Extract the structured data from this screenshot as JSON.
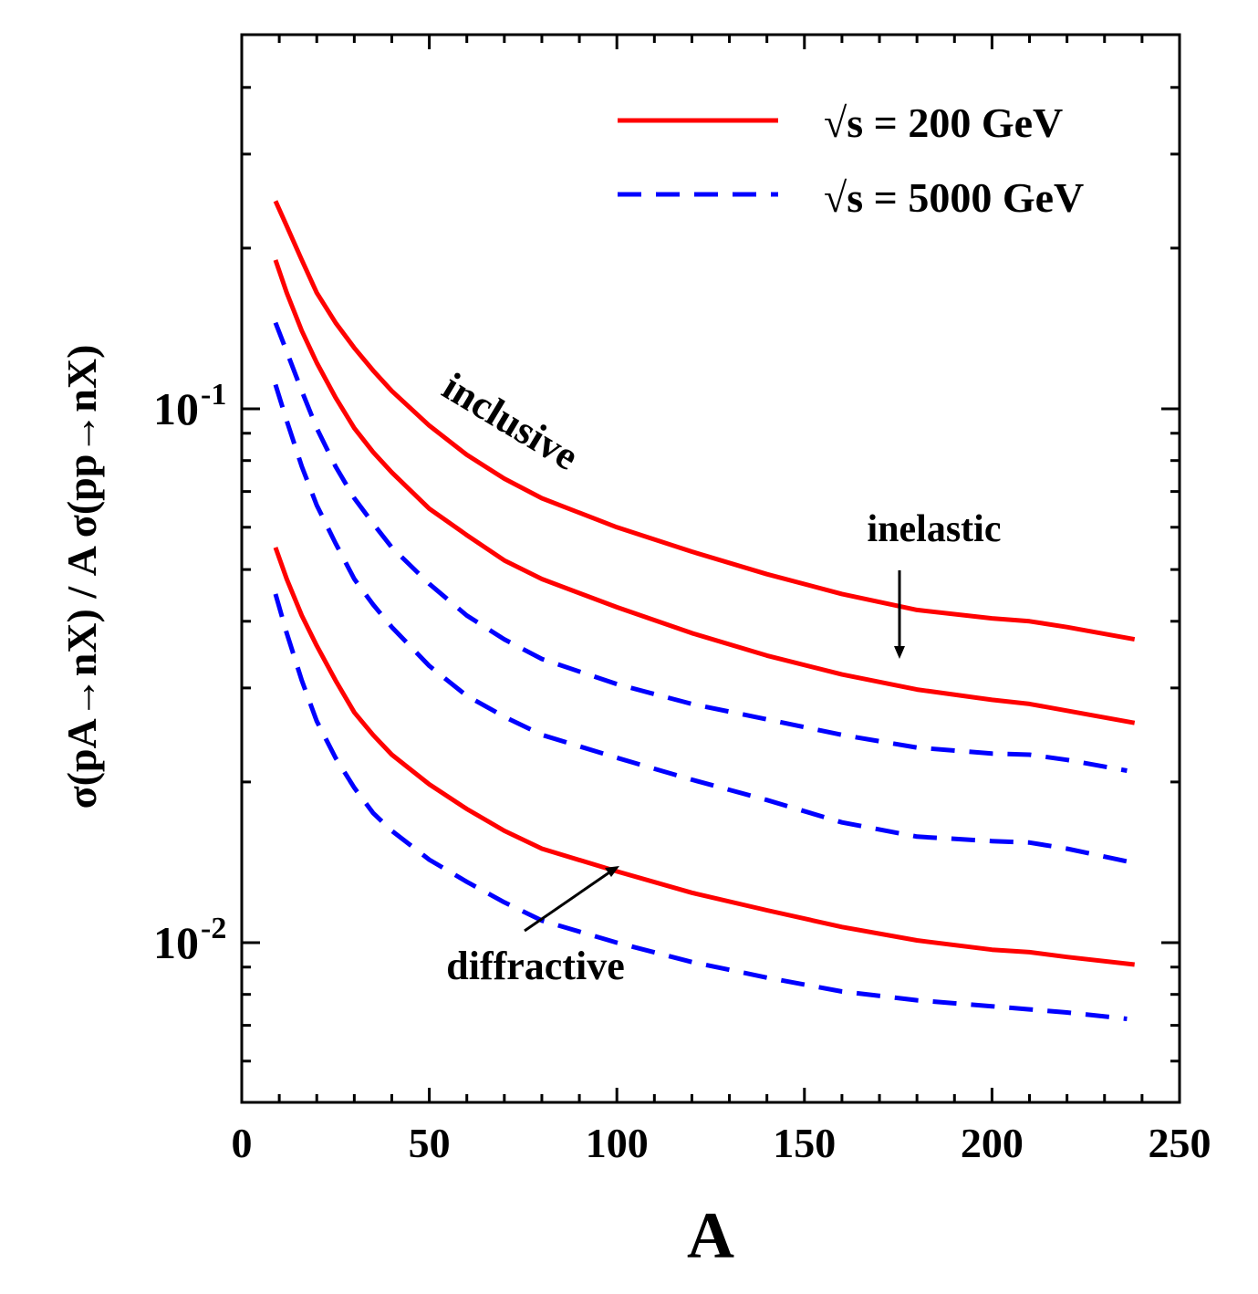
{
  "chart_data": {
    "type": "line",
    "title": "",
    "xlabel": "A",
    "ylabel": "σ(pA→nX) / A σ(pp→nX)",
    "xlim": [
      0,
      250
    ],
    "ylim": [
      0.0055,
      0.4
    ],
    "yscale": "log",
    "grid": false,
    "legend_position": "top-right",
    "x_ticks": [
      "0",
      "50",
      "100",
      "150",
      "200",
      "250"
    ],
    "y_ticks": [
      {
        "base": "10",
        "exp": "-1",
        "value": 0.1
      },
      {
        "base": "10",
        "exp": "-2",
        "value": 0.01
      }
    ],
    "legend": [
      {
        "label": "√s = 200 GeV",
        "color": "#ff0000",
        "dash": "solid"
      },
      {
        "label": "√s = 5000 GeV",
        "color": "#0000ff",
        "dash": "dashed"
      }
    ],
    "annotations": {
      "inclusive": "inclusive",
      "inelastic": "inelastic",
      "diffractive": "diffractive"
    },
    "series": [
      {
        "group": "inclusive",
        "energy": "√s = 200 GeV",
        "color": "#ff0000",
        "dash": "solid",
        "x": [
          9,
          12,
          16,
          20,
          25,
          30,
          35,
          40,
          50,
          60,
          70,
          80,
          100,
          120,
          140,
          160,
          180,
          200,
          210,
          220,
          238
        ],
        "y": [
          0.245,
          0.22,
          0.19,
          0.165,
          0.145,
          0.13,
          0.118,
          0.108,
          0.093,
          0.082,
          0.074,
          0.068,
          0.06,
          0.054,
          0.049,
          0.045,
          0.042,
          0.0405,
          0.04,
          0.039,
          0.037
        ]
      },
      {
        "group": "inelastic",
        "energy": "√s = 200 GeV",
        "color": "#ff0000",
        "dash": "solid",
        "x": [
          9,
          12,
          16,
          20,
          25,
          30,
          35,
          40,
          50,
          60,
          70,
          80,
          100,
          120,
          140,
          160,
          180,
          200,
          210,
          220,
          238
        ],
        "y": [
          0.19,
          0.165,
          0.14,
          0.122,
          0.105,
          0.092,
          0.083,
          0.076,
          0.065,
          0.058,
          0.052,
          0.048,
          0.0425,
          0.038,
          0.0345,
          0.0318,
          0.0298,
          0.0285,
          0.028,
          0.0272,
          0.0258
        ]
      },
      {
        "group": "inclusive",
        "energy": "√s = 5000 GeV",
        "color": "#0000ff",
        "dash": "dashed",
        "x": [
          9,
          12,
          16,
          20,
          25,
          30,
          35,
          40,
          50,
          60,
          70,
          80,
          100,
          120,
          140,
          160,
          180,
          200,
          210,
          220,
          236
        ],
        "y": [
          0.145,
          0.128,
          0.108,
          0.092,
          0.078,
          0.068,
          0.061,
          0.055,
          0.047,
          0.041,
          0.037,
          0.034,
          0.0305,
          0.028,
          0.0262,
          0.0245,
          0.0232,
          0.0226,
          0.0225,
          0.022,
          0.021
        ]
      },
      {
        "group": "inelastic",
        "energy": "√s = 5000 GeV",
        "color": "#0000ff",
        "dash": "dashed",
        "x": [
          9,
          12,
          16,
          20,
          25,
          30,
          35,
          40,
          50,
          60,
          70,
          80,
          100,
          120,
          140,
          160,
          180,
          200,
          210,
          220,
          236
        ],
        "y": [
          0.111,
          0.095,
          0.078,
          0.066,
          0.056,
          0.048,
          0.043,
          0.039,
          0.033,
          0.029,
          0.0265,
          0.0245,
          0.0222,
          0.0202,
          0.0185,
          0.0168,
          0.0158,
          0.0155,
          0.0154,
          0.015,
          0.0142
        ]
      },
      {
        "group": "diffractive",
        "energy": "√s = 200 GeV",
        "color": "#ff0000",
        "dash": "solid",
        "x": [
          9,
          12,
          16,
          20,
          25,
          30,
          35,
          40,
          50,
          60,
          70,
          80,
          100,
          120,
          140,
          160,
          180,
          200,
          210,
          220,
          238
        ],
        "y": [
          0.055,
          0.048,
          0.041,
          0.036,
          0.031,
          0.027,
          0.0245,
          0.0225,
          0.0198,
          0.0178,
          0.0162,
          0.015,
          0.0136,
          0.0124,
          0.0115,
          0.0107,
          0.0101,
          0.0097,
          0.0096,
          0.0094,
          0.0091
        ]
      },
      {
        "group": "diffractive",
        "energy": "√s = 5000 GeV",
        "color": "#0000ff",
        "dash": "dashed",
        "x": [
          9,
          12,
          16,
          20,
          25,
          30,
          35,
          40,
          50,
          60,
          70,
          80,
          100,
          120,
          140,
          160,
          180,
          200,
          210,
          220,
          236
        ],
        "y": [
          0.045,
          0.038,
          0.031,
          0.026,
          0.0222,
          0.0195,
          0.0175,
          0.0162,
          0.0143,
          0.013,
          0.0119,
          0.011,
          0.01,
          0.0092,
          0.0086,
          0.0081,
          0.0078,
          0.0076,
          0.0075,
          0.0074,
          0.0072
        ]
      }
    ]
  }
}
